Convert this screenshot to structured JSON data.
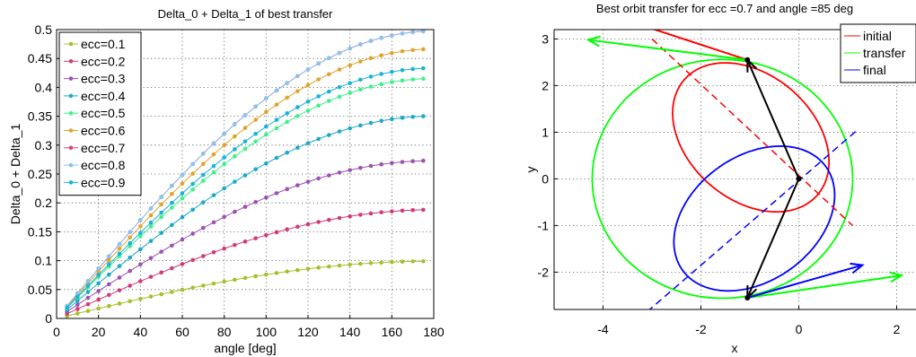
{
  "chart_data": [
    {
      "type": "line",
      "title": "Delta_0 + Delta_1 of best transfer",
      "xlabel": "angle [deg]",
      "ylabel": "Delta_0 + Delta_1",
      "xlim": [
        0,
        180
      ],
      "ylim": [
        0,
        0.5
      ],
      "xticks": [
        "0",
        "20",
        "40",
        "60",
        "80",
        "100",
        "120",
        "140",
        "160",
        "180"
      ],
      "yticks": [
        "0",
        "0.05",
        "0.1",
        "0.15",
        "0.2",
        "0.25",
        "0.3",
        "0.35",
        "0.4",
        "0.45",
        "0.5"
      ],
      "grid": true,
      "legend_position": "top-left",
      "x_start": 5,
      "x_step": 5,
      "x_end": 175,
      "series": [
        {
          "name": "ecc=0.1",
          "color": "#a8be2c",
          "final_value": 0.099
        },
        {
          "name": "ecc=0.2",
          "color": "#d13a78",
          "final_value": 0.188
        },
        {
          "name": "ecc=0.3",
          "color": "#9b52b0",
          "final_value": 0.273
        },
        {
          "name": "ecc=0.4",
          "color": "#1fa8c8",
          "final_value": 0.35
        },
        {
          "name": "ecc=0.5",
          "color": "#3ff08a",
          "final_value": 0.415
        },
        {
          "name": "ecc=0.6",
          "color": "#dfa42c",
          "final_value": 0.466
        },
        {
          "name": "ecc=0.7",
          "color": "#e0427a",
          "final_value": 0.497
        },
        {
          "name": "ecc=0.8",
          "color": "#88c4ee",
          "final_value": 0.497
        },
        {
          "name": "ecc=0.9",
          "color": "#1ab2d6",
          "final_value": 0.433
        }
      ]
    },
    {
      "type": "line",
      "title": "Best orbit transfer for ecc =0.7 and angle =85 deg",
      "xlabel": "x",
      "ylabel": "y",
      "xlim": [
        -5,
        2.4
      ],
      "ylim": [
        -2.8,
        3.2
      ],
      "xticks": [
        "-4",
        "-2",
        "0",
        "2"
      ],
      "yticks": [
        "-2",
        "-1",
        "0",
        "1",
        "2",
        "3"
      ],
      "grid": true,
      "legend_position": "top-right",
      "legend": [
        {
          "name": "initial",
          "color": "#ff0000"
        },
        {
          "name": "transfer",
          "color": "#00ff00"
        },
        {
          "name": "final",
          "color": "#0000ff"
        }
      ],
      "ellipses": [
        {
          "name": "initial",
          "color": "#ff0000",
          "center": [
            -0.98,
            0.89
          ],
          "semi_major": 1.84,
          "semi_minor": 1.31,
          "angle_deg": -45
        },
        {
          "name": "transfer",
          "color": "#00ff00",
          "center": [
            -1.56,
            0.0
          ],
          "semi_major": 2.66,
          "semi_minor": 2.56,
          "angle_deg": 0
        },
        {
          "name": "final",
          "color": "#0000ff",
          "center": [
            -0.91,
            -0.85
          ],
          "semi_major": 1.84,
          "semi_minor": 1.31,
          "angle_deg": 40
        }
      ],
      "axis_lines": [
        {
          "color": "#ff0000",
          "from": [
            -3.0,
            3.0
          ],
          "to": [
            1.1,
            -1.0
          ]
        },
        {
          "color": "#0000ff",
          "from": [
            -3.1,
            -2.85
          ],
          "to": [
            1.2,
            1.05
          ]
        }
      ],
      "radius_vectors": [
        {
          "color": "#000000",
          "from": [
            0,
            0
          ],
          "to": [
            -1.05,
            2.55
          ]
        },
        {
          "color": "#000000",
          "from": [
            0,
            0
          ],
          "to": [
            -1.05,
            -2.55
          ]
        }
      ],
      "velocity_arrows": [
        {
          "color": "#ff0000",
          "from": [
            -1.05,
            2.55
          ],
          "to": [
            -4.1,
            3.6
          ]
        },
        {
          "color": "#00ff00",
          "from": [
            -1.05,
            2.55
          ],
          "to": [
            -4.3,
            2.98
          ]
        },
        {
          "color": "#00ff00",
          "from": [
            -1.05,
            -2.55
          ],
          "to": [
            2.1,
            -2.07
          ]
        },
        {
          "color": "#0000ff",
          "from": [
            -1.05,
            -2.55
          ],
          "to": [
            1.3,
            -1.85
          ]
        }
      ],
      "points": [
        {
          "x": -1.05,
          "y": 2.55
        },
        {
          "x": 0,
          "y": 0
        },
        {
          "x": -1.05,
          "y": -2.55
        }
      ]
    }
  ]
}
